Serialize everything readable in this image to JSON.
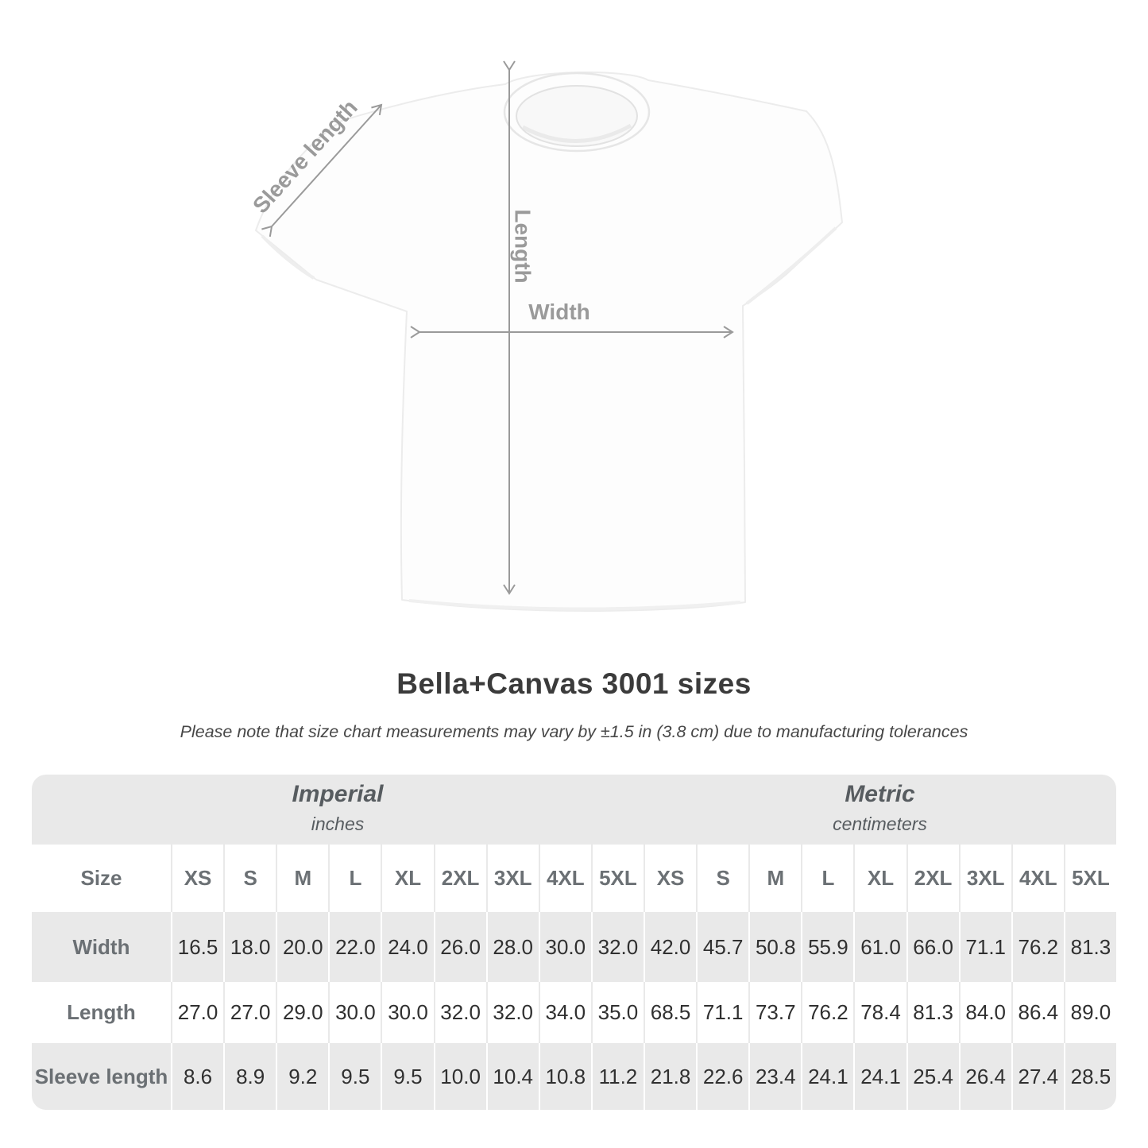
{
  "title": "Bella+Canvas 3001 sizes",
  "subtitle": "Please note that size chart measurements may vary by ±1.5 in (3.8 cm) due to manufacturing tolerances",
  "diagram": {
    "width_label": "Width",
    "length_label": "Length",
    "sleeve_label": "Sleeve length"
  },
  "table": {
    "size_header": "Size",
    "unit_groups": [
      {
        "label": "Imperial",
        "sublabel": "inches"
      },
      {
        "label": "Metric",
        "sublabel": "centimeters"
      }
    ],
    "sizes": [
      "XS",
      "S",
      "M",
      "L",
      "XL",
      "2XL",
      "3XL",
      "4XL",
      "5XL"
    ],
    "rows": [
      {
        "label": "Width",
        "imperial": [
          "16.5",
          "18.0",
          "20.0",
          "22.0",
          "24.0",
          "26.0",
          "28.0",
          "30.0",
          "32.0"
        ],
        "metric": [
          "42.0",
          "45.7",
          "50.8",
          "55.9",
          "61.0",
          "66.0",
          "71.1",
          "76.2",
          "81.3"
        ]
      },
      {
        "label": "Length",
        "imperial": [
          "27.0",
          "27.0",
          "29.0",
          "30.0",
          "30.0",
          "32.0",
          "32.0",
          "34.0",
          "35.0"
        ],
        "metric": [
          "68.5",
          "71.1",
          "73.7",
          "76.2",
          "78.4",
          "81.3",
          "84.0",
          "86.4",
          "89.0"
        ]
      },
      {
        "label": "Sleeve length",
        "imperial": [
          "8.6",
          "8.9",
          "9.2",
          "9.5",
          "9.5",
          "10.0",
          "10.4",
          "10.8",
          "11.2"
        ],
        "metric": [
          "21.8",
          "22.6",
          "23.4",
          "24.1",
          "24.1",
          "25.4",
          "26.4",
          "27.4",
          "28.5"
        ]
      }
    ]
  },
  "chart_data": {
    "type": "table",
    "title": "Bella+Canvas 3001 sizes",
    "note": "Please note that size chart measurements may vary by ±1.5 in (3.8 cm) due to manufacturing tolerances",
    "unit_groups": [
      "Imperial (inches)",
      "Metric (centimeters)"
    ],
    "sizes": [
      "XS",
      "S",
      "M",
      "L",
      "XL",
      "2XL",
      "3XL",
      "4XL",
      "5XL"
    ],
    "measurements": [
      {
        "name": "Width",
        "imperial_in": [
          16.5,
          18.0,
          20.0,
          22.0,
          24.0,
          26.0,
          28.0,
          30.0,
          32.0
        ],
        "metric_cm": [
          42.0,
          45.7,
          50.8,
          55.9,
          61.0,
          66.0,
          71.1,
          76.2,
          81.3
        ]
      },
      {
        "name": "Length",
        "imperial_in": [
          27.0,
          27.0,
          29.0,
          30.0,
          30.0,
          32.0,
          32.0,
          34.0,
          35.0
        ],
        "metric_cm": [
          68.5,
          71.1,
          73.7,
          76.2,
          78.4,
          81.3,
          84.0,
          86.4,
          89.0
        ]
      },
      {
        "name": "Sleeve length",
        "imperial_in": [
          8.6,
          8.9,
          9.2,
          9.5,
          9.5,
          10.0,
          10.4,
          10.8,
          11.2
        ],
        "metric_cm": [
          21.8,
          22.6,
          23.4,
          24.1,
          24.1,
          25.4,
          26.4,
          27.4,
          28.5
        ]
      }
    ],
    "colors": {
      "band_gray": "#e9e9e9",
      "label_gray": "#6b7074",
      "value_dark": "#303030",
      "arrow_gray": "#9a9a9a"
    }
  }
}
